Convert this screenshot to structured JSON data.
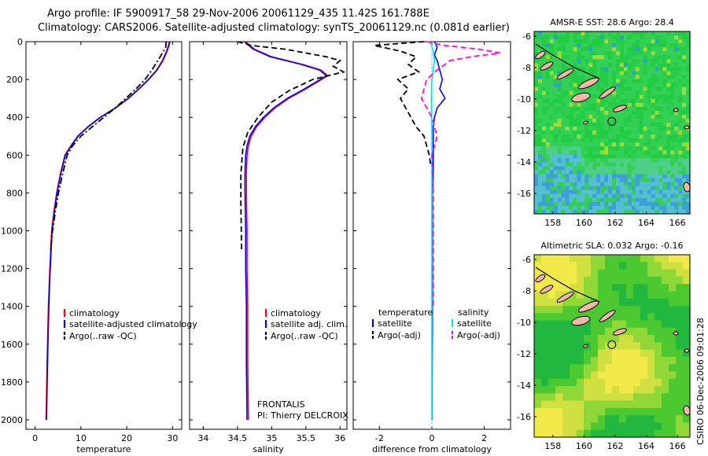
{
  "header": {
    "line1": "Argo profile: IF 5900917_58 29-Nov-2006 20061129_435 11.42S 161.788E",
    "line2": "Climatology: CARS2006. Satellite-adjusted climatology: synTS_20061129.nc (0.081d earlier)"
  },
  "credit": "CSIRO 06-Dec-2006 09:01:28",
  "colors": {
    "climatology": "#ff0000",
    "satellite": "#0000ff",
    "argo": "#000000",
    "sat_salinity": "#00e5ee",
    "argo_salinity": "#ff00ff",
    "land": "#f4b9a6"
  },
  "chart_data": [
    {
      "type": "line",
      "title": "",
      "xlabel": "temperature",
      "ylabel": "",
      "xlim": [
        -2,
        32
      ],
      "ylim": [
        2050,
        0
      ],
      "xticks": [
        0,
        10,
        20,
        30
      ],
      "yticks": [
        0,
        200,
        400,
        600,
        800,
        1000,
        1200,
        1400,
        1600,
        1800,
        2000
      ],
      "legend": {
        "position": "bottom-right",
        "entries": [
          "climatology",
          "satellite-adjusted climatology",
          "Argo(..raw -QC)"
        ]
      },
      "series": [
        {
          "name": "climatology",
          "style": "solid",
          "color": "#ff0000",
          "x": [
            29.3,
            29.1,
            28.7,
            27.8,
            26.5,
            24.7,
            22.6,
            20.3,
            17.5,
            14.2,
            11.5,
            9.3,
            7.8,
            6.5,
            5.5,
            4.7,
            4.1,
            3.6,
            3.2,
            2.9,
            2.6,
            2.4
          ],
          "y": [
            0,
            20,
            50,
            100,
            150,
            200,
            250,
            300,
            350,
            400,
            450,
            500,
            550,
            600,
            700,
            800,
            900,
            1000,
            1200,
            1400,
            1700,
            2000
          ]
        },
        {
          "name": "satellite-adjusted climatology",
          "style": "solid",
          "color": "#0000ff",
          "x": [
            29.4,
            29.2,
            28.8,
            27.9,
            26.6,
            24.8,
            22.7,
            20.4,
            17.6,
            14.3,
            11.6,
            9.4,
            7.9,
            6.6,
            5.6,
            4.8,
            4.2,
            3.7,
            3.3,
            3.0,
            2.7,
            2.5
          ],
          "y": [
            0,
            20,
            50,
            100,
            150,
            200,
            250,
            300,
            350,
            400,
            450,
            500,
            550,
            600,
            700,
            800,
            900,
            1000,
            1200,
            1400,
            1700,
            2000
          ]
        },
        {
          "name": "Argo(..raw -QC)",
          "style": "dash-dot",
          "color": "#000000",
          "x": [
            28.6,
            28.5,
            27.3,
            25.5,
            24.0,
            22.0,
            19.8,
            17.5,
            15.0,
            12.5,
            10.0,
            8.2,
            7.0,
            6.0,
            5.1,
            4.4,
            3.8,
            3.4
          ],
          "y": [
            0,
            30,
            80,
            150,
            200,
            250,
            300,
            350,
            400,
            450,
            500,
            550,
            600,
            700,
            800,
            900,
            1000,
            1100
          ]
        }
      ]
    },
    {
      "type": "line",
      "title": "",
      "xlabel": "salinity",
      "ylabel": "",
      "xlim": [
        33.8,
        36.1
      ],
      "ylim": [
        2050,
        0
      ],
      "xticks": [
        34,
        34.5,
        35,
        35.5,
        36
      ],
      "legend": {
        "position": "bottom-right",
        "entries": [
          "climatology",
          "satellite adj. clim.",
          "Argo(..raw -QC)"
        ]
      },
      "annotation": [
        "FRONTALIS",
        "PI: Thierry DELCROIX"
      ],
      "series": [
        {
          "name": "climatology",
          "style": "solid",
          "color": "#ff0000",
          "x": [
            34.62,
            34.75,
            35.0,
            35.45,
            35.72,
            35.82,
            35.73,
            35.5,
            35.25,
            35.05,
            34.9,
            34.78,
            34.7,
            34.66,
            34.64,
            34.63,
            34.63,
            34.64,
            34.64,
            34.65,
            34.65,
            34.66
          ],
          "y": [
            0,
            40,
            80,
            120,
            150,
            180,
            200,
            250,
            300,
            350,
            400,
            450,
            500,
            550,
            600,
            700,
            800,
            1000,
            1200,
            1400,
            1700,
            2000
          ]
        },
        {
          "name": "satellite adj. clim.",
          "style": "solid",
          "color": "#0000ff",
          "x": [
            34.6,
            34.73,
            34.98,
            35.43,
            35.7,
            35.8,
            35.71,
            35.48,
            35.23,
            35.03,
            34.88,
            34.76,
            34.68,
            34.64,
            34.62,
            34.61,
            34.61,
            34.62,
            34.62,
            34.63,
            34.63,
            34.64
          ],
          "y": [
            0,
            40,
            80,
            120,
            150,
            180,
            200,
            250,
            300,
            350,
            400,
            450,
            500,
            550,
            600,
            700,
            800,
            1000,
            1200,
            1400,
            1700,
            2000
          ]
        },
        {
          "name": "Argo(..raw -QC)",
          "style": "dashed",
          "color": "#000000",
          "x": [
            34.5,
            34.7,
            35.2,
            35.8,
            36.0,
            35.9,
            36.05,
            35.6,
            35.25,
            35.0,
            34.8,
            34.65,
            34.58,
            34.55,
            34.55,
            34.56
          ],
          "y": [
            0,
            20,
            40,
            80,
            100,
            130,
            160,
            200,
            260,
            320,
            400,
            480,
            560,
            700,
            850,
            1100
          ]
        }
      ]
    },
    {
      "type": "line",
      "title": "",
      "xlabel": "difference from climatology",
      "ylabel": "",
      "xlim": [
        -3,
        3
      ],
      "ylim": [
        2050,
        0
      ],
      "xticks": [
        -2,
        0,
        2
      ],
      "legend": {
        "position": "bottom-right",
        "entries": [
          "temperature",
          "satellite",
          "Argo(-adj)",
          "salinity",
          "satellite",
          "Argo(-adj)"
        ]
      },
      "series": [
        {
          "name": "temperature satellite",
          "style": "solid",
          "color": "#0000ff",
          "x": [
            0.1,
            0.2,
            0.1,
            0.2,
            0.3,
            0.4,
            0.3,
            0.5,
            0.2,
            0.1,
            0.05,
            0.05,
            0.05,
            0.05,
            0.02,
            0.02,
            0.02,
            0.02,
            0.01,
            0.01
          ],
          "y": [
            0,
            30,
            70,
            100,
            150,
            200,
            250,
            300,
            350,
            400,
            450,
            500,
            600,
            700,
            800,
            1000,
            1200,
            1500,
            1800,
            2000
          ]
        },
        {
          "name": "temperature Argo(-adj)",
          "style": "dashed",
          "color": "#000000",
          "x": [
            -0.3,
            -2.2,
            -1.2,
            -0.6,
            -0.9,
            -0.5,
            -1.3,
            -0.9,
            -1.2,
            -1.0,
            -0.8,
            -0.6,
            -0.3,
            -0.2,
            -0.1,
            -0.05
          ],
          "y": [
            0,
            20,
            50,
            80,
            120,
            160,
            200,
            250,
            300,
            350,
            400,
            450,
            500,
            550,
            600,
            650
          ]
        },
        {
          "name": "salinity satellite",
          "style": "solid",
          "color": "#00e5ee",
          "x": [
            -0.05,
            0.05,
            0.1,
            0.05,
            0.0,
            -0.02,
            0.0,
            0.0,
            0.0,
            0.0,
            0.0
          ],
          "y": [
            0,
            50,
            100,
            150,
            200,
            300,
            500,
            800,
            1200,
            1600,
            2000
          ]
        },
        {
          "name": "salinity Argo(-adj)",
          "style": "dashed",
          "color": "#ff00ff",
          "x": [
            -0.2,
            0.5,
            1.8,
            2.6,
            1.5,
            0.7,
            0.2,
            -0.2,
            -0.4,
            0.0,
            0.2,
            0.0,
            0.05,
            0.05,
            0.05
          ],
          "y": [
            0,
            20,
            40,
            60,
            80,
            100,
            150,
            200,
            300,
            400,
            500,
            600,
            800,
            1100,
            1400
          ]
        }
      ]
    },
    {
      "type": "heatmap",
      "title": "AMSR-E SST: 28.6 Argo: 28.4",
      "xlim": [
        156.8,
        166.8
      ],
      "ylim": [
        -17.3,
        -5.7
      ],
      "xticks": [
        158,
        160,
        162,
        164,
        166
      ],
      "yticks": [
        -6,
        -8,
        -10,
        -12,
        -14,
        -16
      ],
      "marker": {
        "lon": 161.788,
        "lat": -11.42
      }
    },
    {
      "type": "heatmap",
      "title": "Altimetric SLA: 0.032 Argo: -0.16",
      "xlim": [
        156.8,
        166.8
      ],
      "ylim": [
        -17.3,
        -5.7
      ],
      "xticks": [
        158,
        160,
        162,
        164,
        166
      ],
      "yticks": [
        -6,
        -8,
        -10,
        -12,
        -14,
        -16
      ],
      "marker": {
        "lon": 161.788,
        "lat": -11.42
      }
    }
  ]
}
